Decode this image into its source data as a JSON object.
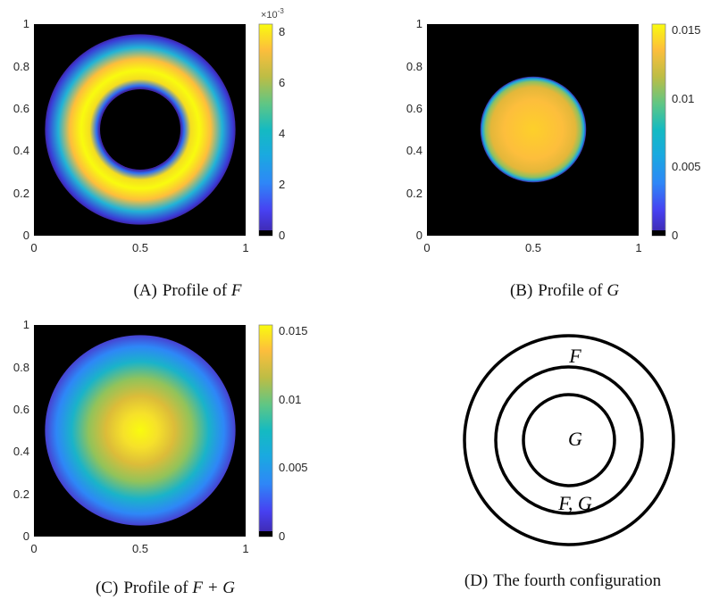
{
  "colors": {
    "background": "#000000",
    "colormap": "parula",
    "stroke": "#000000"
  },
  "chart_data": [
    {
      "id": "A",
      "type": "heatmap",
      "label": "(A)",
      "caption": "Profile of ",
      "caption_math": "F",
      "x_ticks": [
        "0",
        "0.5",
        "1"
      ],
      "y_ticks": [
        "0",
        "0.2",
        "0.4",
        "0.6",
        "0.8",
        "1"
      ],
      "xlim": [
        0,
        1
      ],
      "ylim": [
        0,
        1
      ],
      "colorbar": {
        "min": 0,
        "max": 0.0083,
        "ticks": [
          "0",
          "2",
          "4",
          "6",
          "8"
        ],
        "tick_values": [
          0,
          0.002,
          0.004,
          0.006,
          0.008
        ],
        "multiplier": "×10",
        "exponent": "-3"
      },
      "field": {
        "shape": "annulus",
        "center": [
          0.5,
          0.5
        ],
        "r_inner": 0.2,
        "r_outer": 0.45,
        "peak_radius": 0.27,
        "max": 0.0083
      }
    },
    {
      "id": "B",
      "type": "heatmap",
      "label": "(B)",
      "caption": "Profile of ",
      "caption_math": "G",
      "x_ticks": [
        "0",
        "0.5",
        "1"
      ],
      "y_ticks": [
        "0",
        "0.2",
        "0.4",
        "0.6",
        "0.8",
        "1"
      ],
      "xlim": [
        0,
        1
      ],
      "ylim": [
        0,
        1
      ],
      "colorbar": {
        "min": 0,
        "max": 0.0155,
        "ticks": [
          "0",
          "0.005",
          "0.01",
          "0.015"
        ],
        "tick_values": [
          0,
          0.005,
          0.01,
          0.015
        ]
      },
      "field": {
        "shape": "disk",
        "center": [
          0.5,
          0.5
        ],
        "radius": 0.25,
        "max": 0.0135
      }
    },
    {
      "id": "C",
      "type": "heatmap",
      "label": "(C)",
      "caption": "Profile of ",
      "caption_math": "F + G",
      "x_ticks": [
        "0",
        "0.5",
        "1"
      ],
      "y_ticks": [
        "0",
        "0.2",
        "0.4",
        "0.6",
        "0.8",
        "1"
      ],
      "xlim": [
        0,
        1
      ],
      "ylim": [
        0,
        1
      ],
      "colorbar": {
        "min": 0,
        "max": 0.0155,
        "ticks": [
          "0",
          "0.005",
          "0.01",
          "0.015"
        ],
        "tick_values": [
          0,
          0.005,
          0.01,
          0.015
        ]
      },
      "field": {
        "shape": "disk",
        "center": [
          0.5,
          0.5
        ],
        "radius": 0.45,
        "max": 0.0155
      }
    }
  ],
  "diagram": {
    "label": "(D)",
    "caption": "The fourth configuration",
    "regions": [
      {
        "label": "F"
      },
      {
        "label": "G"
      },
      {
        "label": "F, G"
      }
    ]
  }
}
